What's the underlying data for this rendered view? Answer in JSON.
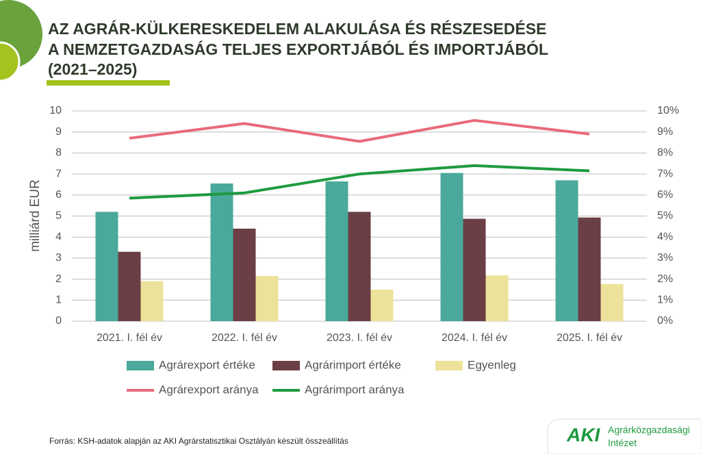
{
  "chart_data": {
    "type": "bar",
    "title_lines": [
      "AZ AGRÁR-KÜLKERESKEDELEM ALAKULÁSA ÉS RÉSZESEDÉSE",
      "A NEMZETGAZDASÁG TELJES EXPORTJÁBÓL ÉS IMPORTJÁBÓL",
      "(2021–2025)"
    ],
    "ylabel": "milliárd EUR",
    "categories": [
      "2021. I. fél év",
      "2022. I. fél év",
      "2023. I. fél év",
      "2024. I. fél év",
      "2025. I. fél év"
    ],
    "series": [
      {
        "name": "Agrárexport értéke",
        "color": "#4aa99a",
        "values": [
          5.2,
          6.55,
          6.65,
          7.05,
          6.7
        ]
      },
      {
        "name": "Agrárimport értéke",
        "color": "#6b3f45",
        "values": [
          3.3,
          4.4,
          5.2,
          4.87,
          4.93
        ]
      },
      {
        "name": "Egyenleg",
        "color": "#ede29a",
        "values": [
          1.9,
          2.15,
          1.5,
          2.18,
          1.77
        ]
      },
      {
        "name": "Agrárexport aránya",
        "color": "#e96a7a",
        "axis": "y2",
        "values": [
          8.7,
          9.4,
          8.55,
          9.55,
          8.9
        ]
      },
      {
        "name": "Agrárimport aránya",
        "color": "#1e9a3f",
        "axis": "y2",
        "values": [
          5.85,
          6.1,
          7.0,
          7.4,
          7.15
        ]
      }
    ],
    "ylim": [
      0,
      10
    ],
    "yticks": [
      0,
      1,
      2,
      3,
      4,
      5,
      6,
      7,
      8,
      9,
      10
    ],
    "y2lim": [
      0,
      10
    ],
    "y2ticks": [
      {
        "value": 0,
        "label": "0%"
      },
      {
        "value": 1,
        "label": "1%"
      },
      {
        "value": 2,
        "label": "2%"
      },
      {
        "value": 3,
        "label": "3%"
      },
      {
        "value": 4,
        "label": "4%"
      },
      {
        "value": 5,
        "label": "5%"
      },
      {
        "value": 6,
        "label": "6%"
      },
      {
        "value": 7,
        "label": "7%"
      },
      {
        "value": 8,
        "label": "8%"
      },
      {
        "value": 9,
        "label": "9%"
      },
      {
        "value": 10,
        "label": "10%"
      }
    ],
    "grid": true
  },
  "source": "Forrás: KSH-adatok alapján az AKI Agrárstatisztikai Osztályán készült összeállítás",
  "logo": {
    "mark": "AKI",
    "line1": "Agrárközgazdasági",
    "line2": "Intézet"
  }
}
